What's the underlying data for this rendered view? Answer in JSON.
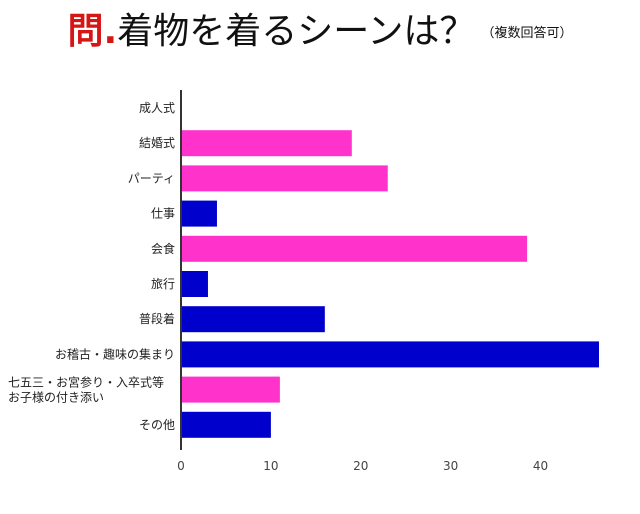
{
  "title": {
    "q_mark": "問.",
    "main": "着物を着るシーンは？",
    "note": "（複数回答可）"
  },
  "colors": {
    "pink": "#ff33cc",
    "blue": "#0000cc",
    "axis": "#333333"
  },
  "chart_data": {
    "type": "bar",
    "orientation": "horizontal",
    "categories": [
      "成人式",
      "結婚式",
      "パーティ",
      "仕事",
      "会食",
      "旅行",
      "普段着",
      "お稽古・趣味の集まり",
      "七五三・お宮参り・入卒式等\nお子様の付き添い",
      "その他"
    ],
    "values": [
      0,
      19,
      23,
      4,
      38.5,
      3,
      16,
      46.5,
      11,
      10
    ],
    "bar_colors": [
      "pink",
      "pink",
      "pink",
      "blue",
      "pink",
      "blue",
      "blue",
      "blue",
      "pink",
      "blue"
    ],
    "xticks": [
      0,
      10,
      20,
      30,
      40
    ],
    "xlim": [
      0,
      46.5
    ],
    "title": "着物を着るシーンは？",
    "xlabel": "",
    "ylabel": ""
  }
}
